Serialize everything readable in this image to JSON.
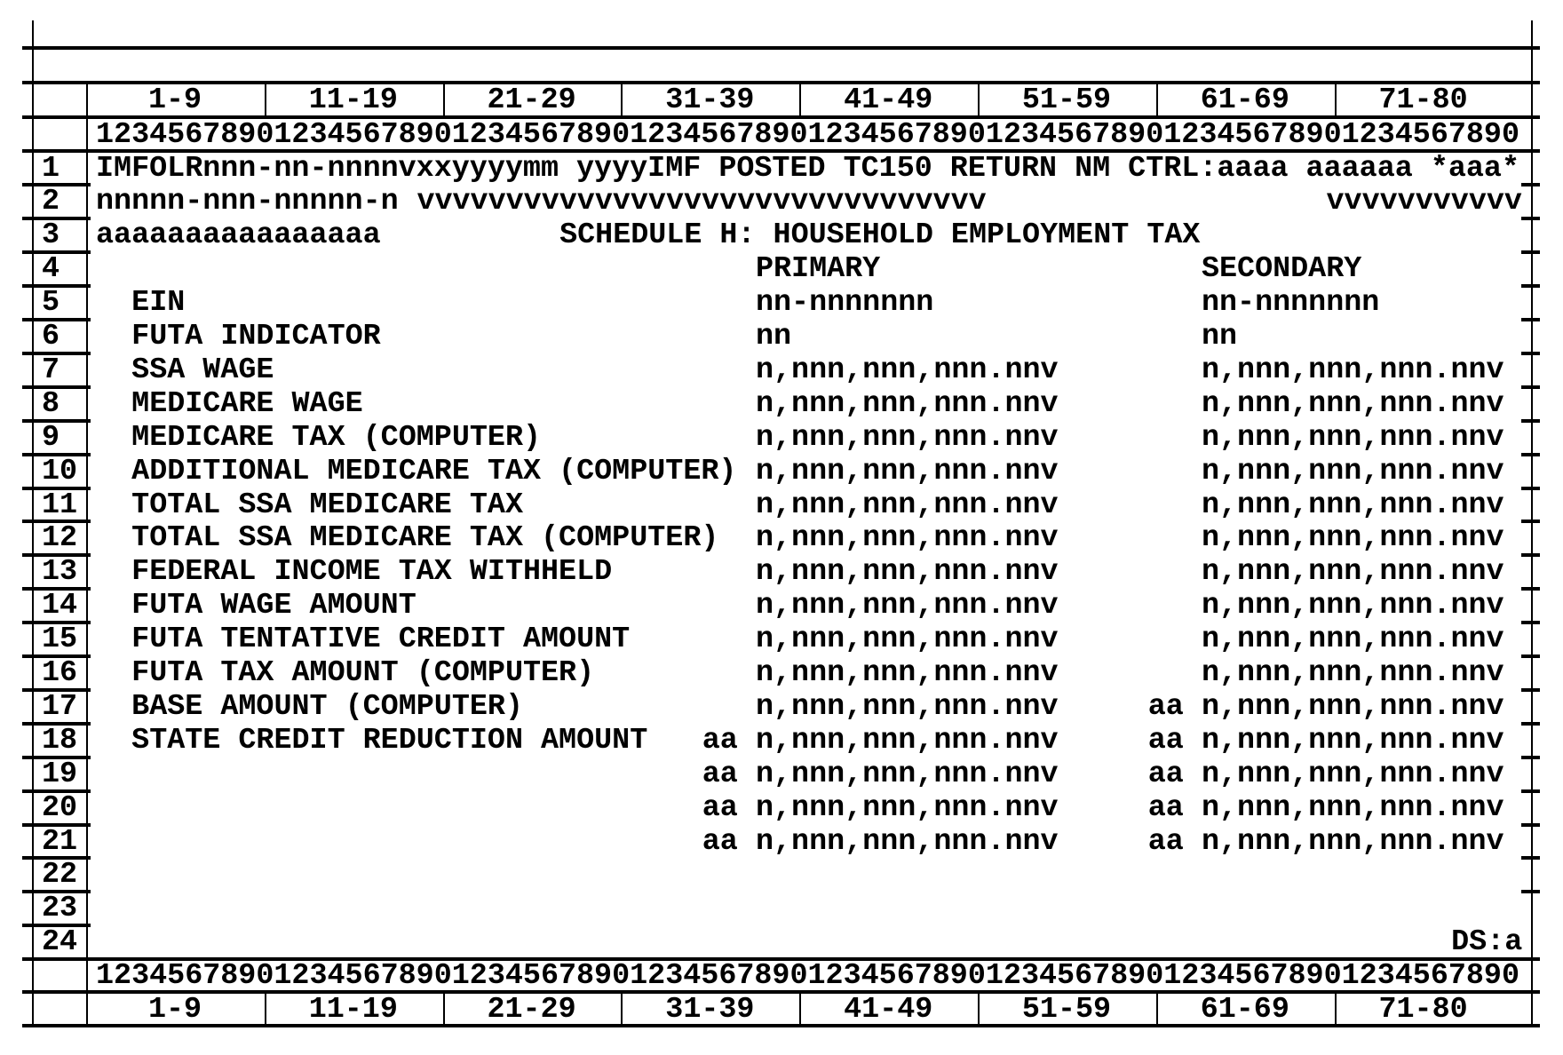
{
  "column_ranges": [
    "1-9",
    "11-19",
    "21-29",
    "31-39",
    "41-49",
    "51-59",
    "61-69",
    "71-80"
  ],
  "ruler": "12345678901234567890123456789012345678901234567890123456789012345678901234567890",
  "row_numbers": [
    "1",
    "2",
    "3",
    "4",
    "5",
    "6",
    "7",
    "8",
    "9",
    "10",
    "11",
    "12",
    "13",
    "14",
    "15",
    "16",
    "17",
    "18",
    "19",
    "20",
    "21",
    "22",
    "23",
    "24"
  ],
  "header": {
    "line1": "IMFOLRnnn-nn-nnnnvxxyyyymm yyyyIMF POSTED TC150 RETURN NM CTRL:aaaa aaaaaa *aaa*",
    "line2_tin": "nnnnn-nnn-nnnnn-n",
    "line2_name": "vvvvvvvvvvvvvvvvvvvvvvvvvvvvvvvv",
    "line2_right": "vvvvvvvvvvv",
    "line3_name": "aaaaaaaaaaaaaaaa",
    "title": "SCHEDULE H: HOUSEHOLD EMPLOYMENT TAX",
    "primary_heading": "PRIMARY",
    "secondary_heading": "SECONDARY"
  },
  "fields": [
    {
      "label": "EIN",
      "primary": "nn-nnnnnnn",
      "secondary": "nn-nnnnnnn"
    },
    {
      "label": "FUTA INDICATOR",
      "primary": "nn",
      "secondary": "nn"
    },
    {
      "label": "SSA WAGE",
      "primary": "n,nnn,nnn,nnn.nnv",
      "secondary": "n,nnn,nnn,nnn.nnv"
    },
    {
      "label": "MEDICARE WAGE",
      "primary": "n,nnn,nnn,nnn.nnv",
      "secondary": "n,nnn,nnn,nnn.nnv"
    },
    {
      "label": "MEDICARE TAX (COMPUTER)",
      "primary": "n,nnn,nnn,nnn.nnv",
      "secondary": "n,nnn,nnn,nnn.nnv"
    },
    {
      "label": "ADDITIONAL MEDICARE TAX (COMPUTER)",
      "primary": "n,nnn,nnn,nnn.nnv",
      "secondary": "n,nnn,nnn,nnn.nnv"
    },
    {
      "label": "TOTAL SSA MEDICARE TAX",
      "primary": "n,nnn,nnn,nnn.nnv",
      "secondary": "n,nnn,nnn,nnn.nnv"
    },
    {
      "label": "TOTAL SSA MEDICARE TAX (COMPUTER)",
      "primary": "n,nnn,nnn,nnn.nnv",
      "secondary": "n,nnn,nnn,nnn.nnv"
    },
    {
      "label": "FEDERAL INCOME TAX WITHHELD",
      "primary": "n,nnn,nnn,nnn.nnv",
      "secondary": "n,nnn,nnn,nnn.nnv"
    },
    {
      "label": "FUTA WAGE AMOUNT",
      "primary": "n,nnn,nnn,nnn.nnv",
      "secondary": "n,nnn,nnn,nnn.nnv"
    },
    {
      "label": "FUTA TENTATIVE CREDIT AMOUNT",
      "primary": "n,nnn,nnn,nnn.nnv",
      "secondary": "n,nnn,nnn,nnn.nnv"
    },
    {
      "label": "FUTA TAX AMOUNT (COMPUTER)",
      "primary": "n,nnn,nnn,nnn.nnv",
      "secondary": "n,nnn,nnn,nnn.nnv"
    },
    {
      "label": "BASE AMOUNT (COMPUTER)",
      "primary": "n,nnn,nnn,nnn.nnv",
      "secondary_code": "aa",
      "secondary": "n,nnn,nnn,nnn.nnv"
    },
    {
      "label": "STATE CREDIT REDUCTION AMOUNT",
      "primary_code": "aa",
      "primary": "n,nnn,nnn,nnn.nnv",
      "secondary_code": "aa",
      "secondary": "n,nnn,nnn,nnn.nnv"
    },
    {
      "primary_code": "aa",
      "primary": "n,nnn,nnn,nnn.nnv",
      "secondary_code": "aa",
      "secondary": "n,nnn,nnn,nnn.nnv"
    },
    {
      "primary_code": "aa",
      "primary": "n,nnn,nnn,nnn.nnv",
      "secondary_code": "aa",
      "secondary": "n,nnn,nnn,nnn.nnv"
    },
    {
      "primary_code": "aa",
      "primary": "n,nnn,nnn,nnn.nnv",
      "secondary_code": "aa",
      "secondary": "n,nnn,nnn,nnn.nnv"
    }
  ],
  "status": "DS:a"
}
